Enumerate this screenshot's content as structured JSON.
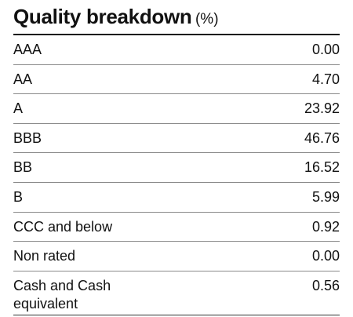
{
  "header": {
    "title": "Quality breakdown",
    "unit": "(%)"
  },
  "table": {
    "rows": [
      [
        "AAA",
        "0.00"
      ],
      [
        "AA",
        "4.70"
      ],
      [
        "A",
        "23.92"
      ],
      [
        "BBB",
        "46.76"
      ],
      [
        "BB",
        "16.52"
      ],
      [
        "B",
        "5.99"
      ],
      [
        "CCC and below",
        "0.92"
      ],
      [
        "Non rated",
        "0.00"
      ],
      [
        "Cash and Cash equivalent",
        "0.56"
      ]
    ]
  }
}
